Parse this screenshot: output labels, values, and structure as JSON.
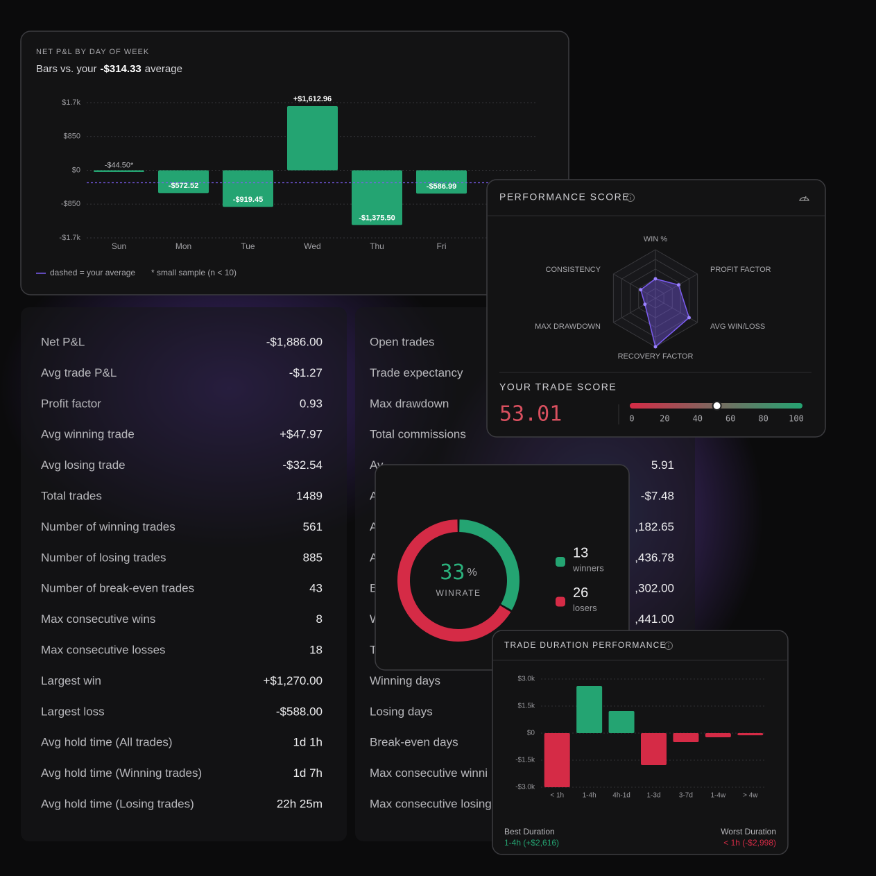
{
  "pnl_by_day": {
    "type": "bar",
    "title": "NET P&L BY DAY OF WEEK",
    "subtitle": {
      "prefix": "Bars vs. your",
      "suffix": "average"
    },
    "average": {
      "value": -314.33,
      "label": "-$314.33"
    },
    "categories": [
      "Sun",
      "Mon",
      "Tue",
      "Wed",
      "Thu",
      "Fri"
    ],
    "values": [
      -44.5,
      -572.52,
      -919.45,
      1612.96,
      -1375.5,
      -586.99
    ],
    "value_labels": [
      "-$44.50*",
      "-$572.52",
      "-$919.45",
      "+$1,612.96",
      "-$1,375.50",
      "-$586.99"
    ],
    "color": "#24a472",
    "average_color": "#7b5cf0",
    "ylim": [
      -1700,
      1700
    ],
    "yticks": [
      {
        "value": 1700,
        "label": "$1.7k"
      },
      {
        "value": 850,
        "label": "$850"
      },
      {
        "value": 0,
        "label": "$0"
      },
      {
        "value": -850,
        "label": "-$850"
      },
      {
        "value": -1700,
        "label": "-$1.7k"
      }
    ],
    "grid": true,
    "notes": {
      "average": "dashed = your average",
      "sample": "* small sample (n < 10)"
    }
  },
  "stats_left": {
    "rows": [
      {
        "label": "Net P&L",
        "value": "-$1,886.00"
      },
      {
        "label": "Avg trade P&L",
        "value": "-$1.27"
      },
      {
        "label": "Profit factor",
        "value": "0.93"
      },
      {
        "label": "Avg winning trade",
        "value": "+$47.97"
      },
      {
        "label": "Avg losing trade",
        "value": "-$32.54"
      },
      {
        "label": "Total trades",
        "value": "1489"
      },
      {
        "label": "Number of winning trades",
        "value": "561"
      },
      {
        "label": "Number of losing trades",
        "value": "885"
      },
      {
        "label": "Number of break-even trades",
        "value": "43"
      },
      {
        "label": "Max consecutive wins",
        "value": "8"
      },
      {
        "label": "Max consecutive losses",
        "value": "18"
      },
      {
        "label": "Largest win",
        "value": "+$1,270.00"
      },
      {
        "label": "Largest loss",
        "value": "-$588.00"
      },
      {
        "label": "Avg hold time (All trades)",
        "value": "1d 1h"
      },
      {
        "label": "Avg hold time (Winning trades)",
        "value": "1d 7h"
      },
      {
        "label": "Avg hold time (Losing trades)",
        "value": "22h 25m"
      }
    ]
  },
  "stats_right": {
    "rows": [
      {
        "label": "Open trades"
      },
      {
        "label": "Trade expectancy"
      },
      {
        "label": "Max drawdown"
      },
      {
        "label": "Total commissions"
      },
      {
        "label": "Av",
        "value": "5.91"
      },
      {
        "label": "A",
        "value": "-$7.48"
      },
      {
        "label": "A",
        "value": ",182.65"
      },
      {
        "label": "A",
        "value": ",436.78"
      },
      {
        "label": "B",
        "value": ",302.00"
      },
      {
        "label": "W",
        "value": ",441.00"
      },
      {
        "label": "T"
      },
      {
        "label": "Winning days"
      },
      {
        "label": "Losing days"
      },
      {
        "label": "Break-even days"
      },
      {
        "label": "Max consecutive winni"
      },
      {
        "label": "Max consecutive losing"
      }
    ]
  },
  "performance_score": {
    "type": "radar",
    "title": "PERFORMANCE SCORE",
    "axes": [
      "WIN %",
      "PROFIT FACTOR",
      "AVG WIN/LOSS",
      "RECOVERY FACTOR",
      "MAX DRAWDOWN",
      "CONSISTENCY"
    ],
    "values": [
      40,
      55,
      80,
      100,
      25,
      35
    ],
    "rlim": [
      0,
      100
    ],
    "color": "#7b5cf0",
    "trade_score": {
      "label": "YOUR TRADE SCORE",
      "value": 53.01,
      "xlim": [
        0,
        100
      ],
      "xticks": [
        0,
        20,
        40,
        60,
        80,
        100
      ]
    }
  },
  "winrate": {
    "type": "donut",
    "value": 33,
    "unit": "%",
    "label": "WINRATE",
    "series": [
      {
        "name": "winners",
        "value": 13,
        "color": "#24a472"
      },
      {
        "name": "losers",
        "value": 26,
        "color": "#d52b46"
      }
    ]
  },
  "trade_duration": {
    "type": "bar",
    "title": "TRADE DURATION PERFORMANCE",
    "categories": [
      "< 1h",
      "1-4h",
      "4h-1d",
      "1-3d",
      "3-7d",
      "1-4w",
      "> 4w"
    ],
    "values": [
      -2998,
      2616,
      1230,
      -1770,
      -500,
      -230,
      -120
    ],
    "colors": {
      "positive": "#24a472",
      "negative": "#d52b46"
    },
    "ylim": [
      -3000,
      3000
    ],
    "yticks": [
      {
        "value": 3000,
        "label": "$3.0k"
      },
      {
        "value": 1500,
        "label": "$1.5k"
      },
      {
        "value": 0,
        "label": "$0"
      },
      {
        "value": -1500,
        "label": "-$1.5k"
      },
      {
        "value": -3000,
        "label": "-$3.0k"
      }
    ],
    "grid": true,
    "best": {
      "label": "Best Duration",
      "value": "1-4h (+$2,616)"
    },
    "worst": {
      "label": "Worst Duration",
      "value": "< 1h (-$2,998)"
    }
  }
}
